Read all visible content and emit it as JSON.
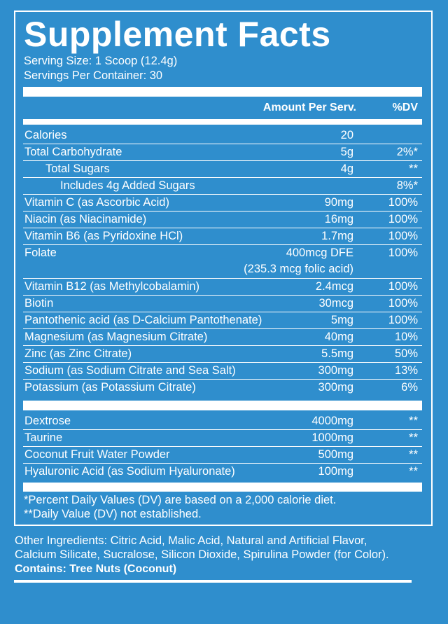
{
  "title": "Supplement Facts",
  "serving_size": "Serving Size: 1 Scoop (12.4g)",
  "servings_per_container": "Servings Per Container: 30",
  "header": {
    "amount": "Amount Per Serv.",
    "dv": "%DV"
  },
  "rows": [
    {
      "name": "Calories",
      "amount": "20",
      "dv": ""
    },
    {
      "name": "Total Carbohydrate",
      "amount": "5g",
      "dv": "2%*"
    },
    {
      "name": "Total Sugars",
      "amount": "4g",
      "dv": "**"
    },
    {
      "name": "Includes 4g Added Sugars",
      "amount": "",
      "dv": "8%*"
    },
    {
      "name": "Vitamin C (as Ascorbic Acid)",
      "amount": "90mg",
      "dv": "100%"
    },
    {
      "name": "Niacin (as Niacinamide)",
      "amount": "16mg",
      "dv": "100%"
    },
    {
      "name": "Vitamin B6 (as Pyridoxine HCl)",
      "amount": "1.7mg",
      "dv": "100%"
    },
    {
      "name": "Folate",
      "amount": "400mcg DFE",
      "amount2": "(235.3 mcg folic acid)",
      "dv": "100%"
    },
    {
      "name": "Vitamin B12 (as Methylcobalamin)",
      "amount": "2.4mcg",
      "dv": "100%"
    },
    {
      "name": "Biotin",
      "amount": "30mcg",
      "dv": "100%"
    },
    {
      "name": "Pantothenic acid (as D-Calcium Pantothenate)",
      "amount": "5mg",
      "dv": "100%"
    },
    {
      "name": "Magnesium (as Magnesium Citrate)",
      "amount": "40mg",
      "dv": "10%"
    },
    {
      "name": "Zinc (as Zinc Citrate)",
      "amount": "5.5mg",
      "dv": "50%"
    },
    {
      "name": "Sodium (as Sodium Citrate and Sea Salt)",
      "amount": "300mg",
      "dv": "13%"
    },
    {
      "name": "Potassium (as Potassium Citrate)",
      "amount": "300mg",
      "dv": "6%"
    }
  ],
  "rows2": [
    {
      "name": "Dextrose",
      "amount": "4000mg",
      "dv": "**"
    },
    {
      "name": "Taurine",
      "amount": "1000mg",
      "dv": "**"
    },
    {
      "name": "Coconut Fruit Water Powder",
      "amount": "500mg",
      "dv": "**"
    },
    {
      "name": "Hyaluronic Acid (as Sodium Hyaluronate)",
      "amount": "100mg",
      "dv": "**"
    }
  ],
  "footnotes": [
    "*Percent Daily Values (DV) are based on a 2,000 calorie diet.",
    "**Daily Value (DV) not established."
  ],
  "other_ingredients": [
    "Other Ingredients: Citric Acid, Malic Acid, Natural and Artificial Flavor,",
    "Calcium Silicate, Sucralose, Silicon Dioxide, Spirulina Powder (for Color)."
  ],
  "contains": "Contains: Tree Nuts (Coconut)"
}
